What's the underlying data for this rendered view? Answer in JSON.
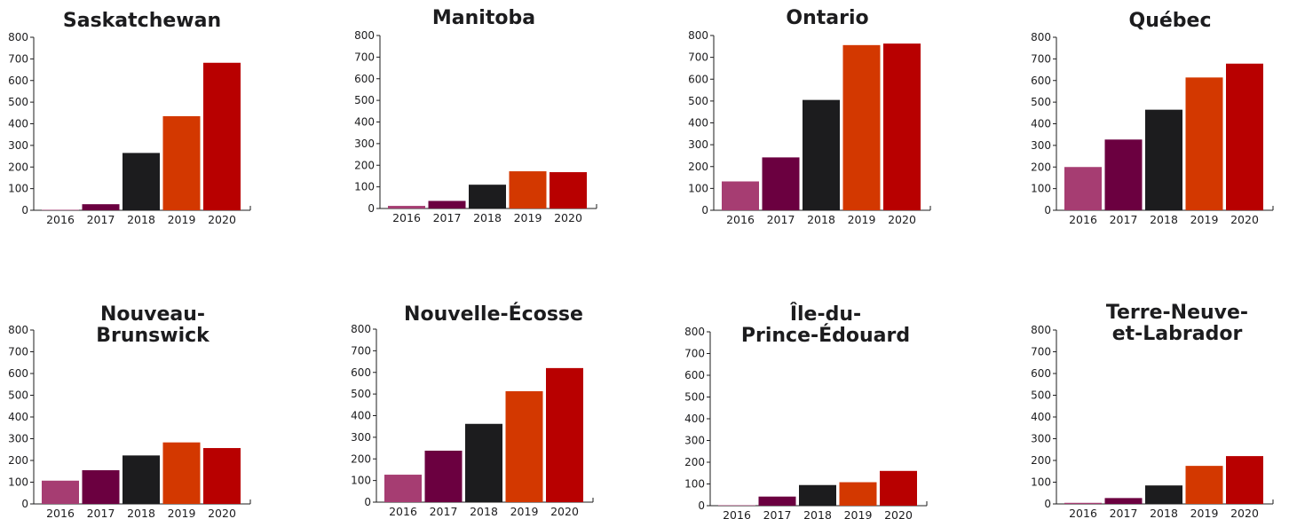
{
  "colors": {
    "text": "#1c1c1e",
    "axis": "#1c1c1e",
    "bars": [
      "#a63d72",
      "#6b0040",
      "#1c1c1e",
      "#d33800",
      "#b80000"
    ]
  },
  "chart_data": [
    {
      "type": "bar",
      "title_lines": [
        "Saskatchewan"
      ],
      "categories": [
        "2016",
        "2017",
        "2018",
        "2019",
        "2020"
      ],
      "values": [
        2,
        28,
        265,
        435,
        682
      ],
      "ylim": [
        0,
        800
      ],
      "yticks": [
        "0",
        "100",
        "200",
        "300",
        "400",
        "500",
        "600",
        "700",
        "800"
      ]
    },
    {
      "type": "bar",
      "title_lines": [
        "Manitoba"
      ],
      "categories": [
        "2016",
        "2017",
        "2018",
        "2019",
        "2020"
      ],
      "values": [
        12,
        35,
        110,
        172,
        168
      ],
      "ylim": [
        0,
        800
      ],
      "yticks": [
        "0",
        "100",
        "200",
        "300",
        "400",
        "500",
        "600",
        "700",
        "800"
      ]
    },
    {
      "type": "bar",
      "title_lines": [
        "Ontario"
      ],
      "categories": [
        "2016",
        "2017",
        "2018",
        "2019",
        "2020"
      ],
      "values": [
        132,
        242,
        505,
        756,
        763
      ],
      "ylim": [
        0,
        800
      ],
      "yticks": [
        "0",
        "100",
        "200",
        "300",
        "400",
        "500",
        "600",
        "700",
        "800"
      ]
    },
    {
      "type": "bar",
      "title_lines": [
        "Québec"
      ],
      "categories": [
        "2016",
        "2017",
        "2018",
        "2019",
        "2020"
      ],
      "values": [
        200,
        327,
        465,
        614,
        678
      ],
      "ylim": [
        0,
        800
      ],
      "yticks": [
        "0",
        "100",
        "200",
        "300",
        "400",
        "500",
        "600",
        "700",
        "800"
      ]
    },
    {
      "type": "bar",
      "title_lines": [
        "Nouveau-",
        "Brunswick"
      ],
      "categories": [
        "2016",
        "2017",
        "2018",
        "2019",
        "2020"
      ],
      "values": [
        107,
        155,
        223,
        283,
        257
      ],
      "ylim": [
        0,
        800
      ],
      "yticks": [
        "0",
        "100",
        "200",
        "300",
        "400",
        "500",
        "600",
        "700",
        "800"
      ]
    },
    {
      "type": "bar",
      "title_lines": [
        "Nouvelle-Écosse"
      ],
      "categories": [
        "2016",
        "2017",
        "2018",
        "2019",
        "2020"
      ],
      "values": [
        127,
        238,
        362,
        513,
        620
      ],
      "ylim": [
        0,
        800
      ],
      "yticks": [
        "0",
        "100",
        "200",
        "300",
        "400",
        "500",
        "600",
        "700",
        "800"
      ]
    },
    {
      "type": "bar",
      "title_lines": [
        "Île-du-",
        "Prince-Édouard"
      ],
      "categories": [
        "2016",
        "2017",
        "2018",
        "2019",
        "2020"
      ],
      "values": [
        2,
        42,
        95,
        108,
        160
      ],
      "ylim": [
        0,
        800
      ],
      "yticks": [
        "0",
        "100",
        "200",
        "300",
        "400",
        "500",
        "600",
        "700",
        "800"
      ]
    },
    {
      "type": "bar",
      "title_lines": [
        "Terre-Neuve-",
        "et-Labrador"
      ],
      "categories": [
        "2016",
        "2017",
        "2018",
        "2019",
        "2020"
      ],
      "values": [
        5,
        27,
        85,
        175,
        220
      ],
      "ylim": [
        0,
        800
      ],
      "yticks": [
        "0",
        "100",
        "200",
        "300",
        "400",
        "500",
        "600",
        "700",
        "800"
      ]
    }
  ]
}
